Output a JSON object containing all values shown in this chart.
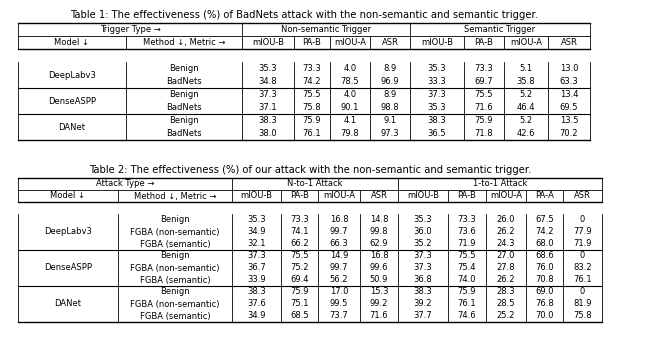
{
  "table1_title": "Table 1: The effectiveness (%) of BadNets attack with the non-semantic and semantic trigger.",
  "table2_title": "Table 2: The effectiveness (%) of our attack with the non-semantic and semantic trigger.",
  "t1_rows": [
    [
      "DeepLabv3",
      "Benign",
      "35.3",
      "73.3",
      "4.0",
      "8.9",
      "35.3",
      "73.3",
      "5.1",
      "13.0"
    ],
    [
      "",
      "BadNets",
      "34.8",
      "74.2",
      "78.5",
      "96.9",
      "33.3",
      "69.7",
      "35.8",
      "63.3"
    ],
    [
      "DenseASPP",
      "Benign",
      "37.3",
      "75.5",
      "4.0",
      "8.9",
      "37.3",
      "75.5",
      "5.2",
      "13.4"
    ],
    [
      "",
      "BadNets",
      "37.1",
      "75.8",
      "90.1",
      "98.8",
      "35.3",
      "71.6",
      "46.4",
      "69.5"
    ],
    [
      "DANet",
      "Benign",
      "38.3",
      "75.9",
      "4.1",
      "9.1",
      "38.3",
      "75.9",
      "5.2",
      "13.5"
    ],
    [
      "",
      "BadNets",
      "38.0",
      "76.1",
      "79.8",
      "97.3",
      "36.5",
      "71.8",
      "42.6",
      "70.2"
    ]
  ],
  "t2_rows": [
    [
      "DeepLabv3",
      "Benign",
      "35.3",
      "73.3",
      "16.8",
      "14.8",
      "35.3",
      "73.3",
      "26.0",
      "67.5",
      "0"
    ],
    [
      "",
      "FGBA (non-semantic)",
      "34.9",
      "74.1",
      "99.7",
      "99.8",
      "36.0",
      "73.6",
      "26.2",
      "74.2",
      "77.9"
    ],
    [
      "",
      "FGBA (semantic)",
      "32.1",
      "66.2",
      "66.3",
      "62.9",
      "35.2",
      "71.9",
      "24.3",
      "68.0",
      "71.9"
    ],
    [
      "DenseASPP",
      "Benign",
      "37.3",
      "75.5",
      "14.9",
      "16.8",
      "37.3",
      "75.5",
      "27.0",
      "68.6",
      "0"
    ],
    [
      "",
      "FGBA (non-semantic)",
      "36.7",
      "75.2",
      "99.7",
      "99.6",
      "37.3",
      "75.4",
      "27.8",
      "76.0",
      "83.2"
    ],
    [
      "",
      "FGBA (semantic)",
      "33.9",
      "69.4",
      "56.2",
      "50.9",
      "36.8",
      "74.0",
      "26.2",
      "70.8",
      "76.1"
    ],
    [
      "DANet",
      "Benign",
      "38.3",
      "75.9",
      "17.0",
      "15.3",
      "38.3",
      "75.9",
      "28.3",
      "69.0",
      "0"
    ],
    [
      "",
      "FGBA (non-semantic)",
      "37.6",
      "75.1",
      "99.5",
      "99.2",
      "39.2",
      "76.1",
      "28.5",
      "76.8",
      "81.9"
    ],
    [
      "",
      "FGBA (semantic)",
      "34.9",
      "68.5",
      "73.7",
      "71.6",
      "37.7",
      "74.6",
      "25.2",
      "70.0",
      "75.8"
    ]
  ],
  "font_family": "DejaVu Sans",
  "fs": 6.0,
  "title_fs": 7.2
}
